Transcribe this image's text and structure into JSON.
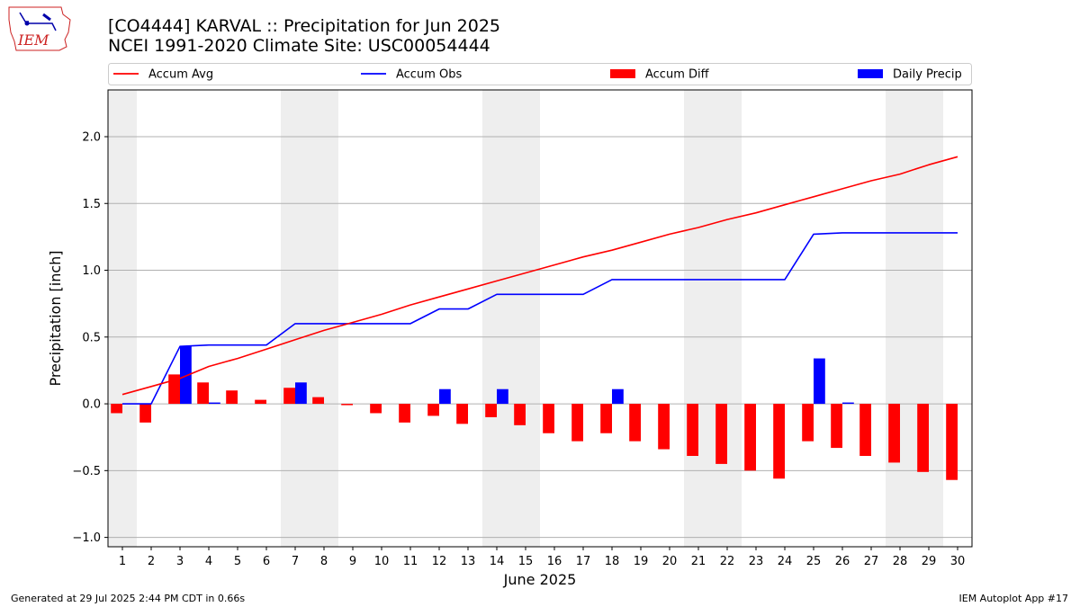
{
  "header": {
    "title_line1": "[CO4444] KARVAL :: Precipitation for Jun 2025",
    "title_line2": "NCEI 1991-2020 Climate Site: USC00054444",
    "logo_text": "IEM"
  },
  "footer": {
    "generated": "Generated at 29 Jul 2025 2:44 PM CDT in 0.66s",
    "app": "IEM Autoplot App #17"
  },
  "colors": {
    "accum_avg": "#ff0000",
    "accum_obs": "#0000ff",
    "accum_diff": "#ff0000",
    "daily_precip": "#0000ff",
    "weekend_shade": "#eeeeee"
  },
  "chart_data": {
    "type": "bar",
    "xlabel": "June 2025",
    "ylabel": "Precipitation [inch]",
    "ylim": [
      -1.07,
      2.35
    ],
    "yticks": [
      -1.0,
      -0.5,
      0.0,
      0.5,
      1.0,
      1.5,
      2.0
    ],
    "ytick_labels": [
      "−1.0",
      "−0.5",
      "0.0",
      "0.5",
      "1.0",
      "1.5",
      "2.0"
    ],
    "grid": "y",
    "legend": "top, above plot",
    "days": [
      1,
      2,
      3,
      4,
      5,
      6,
      7,
      8,
      9,
      10,
      11,
      12,
      13,
      14,
      15,
      16,
      17,
      18,
      19,
      20,
      21,
      22,
      23,
      24,
      25,
      26,
      27,
      28,
      29,
      30
    ],
    "weekend_days": [
      1,
      7,
      8,
      14,
      15,
      21,
      22,
      28,
      29
    ],
    "series": [
      {
        "name": "Accum Avg",
        "kind": "line",
        "values": [
          0.07,
          0.13,
          0.19,
          0.28,
          0.34,
          0.41,
          0.48,
          0.55,
          0.61,
          0.67,
          0.74,
          0.8,
          0.86,
          0.92,
          0.98,
          1.04,
          1.1,
          1.15,
          1.21,
          1.27,
          1.32,
          1.38,
          1.43,
          1.49,
          1.55,
          1.61,
          1.67,
          1.72,
          1.79,
          1.85
        ]
      },
      {
        "name": "Accum Obs",
        "kind": "line",
        "values": [
          0.0,
          0.0,
          0.43,
          0.44,
          0.44,
          0.44,
          0.6,
          0.6,
          0.6,
          0.6,
          0.6,
          0.71,
          0.71,
          0.82,
          0.82,
          0.82,
          0.82,
          0.93,
          0.93,
          0.93,
          0.93,
          0.93,
          0.93,
          0.93,
          1.27,
          1.28,
          1.28,
          1.28,
          1.28,
          1.28
        ]
      },
      {
        "name": "Accum Diff",
        "kind": "bar",
        "values": [
          -0.07,
          -0.14,
          0.22,
          0.16,
          0.1,
          0.03,
          0.12,
          0.05,
          -0.01,
          -0.07,
          -0.14,
          -0.09,
          -0.15,
          -0.1,
          -0.16,
          -0.22,
          -0.28,
          -0.22,
          -0.28,
          -0.34,
          -0.39,
          -0.45,
          -0.5,
          -0.56,
          -0.28,
          -0.33,
          -0.39,
          -0.44,
          -0.51,
          -0.57
        ]
      },
      {
        "name": "Daily Precip",
        "kind": "bar",
        "values": [
          0.0,
          0.0,
          0.43,
          0.01,
          0.0,
          0.0,
          0.16,
          0.0,
          0.0,
          0.0,
          0.0,
          0.11,
          0.0,
          0.11,
          0.0,
          0.0,
          0.0,
          0.11,
          0.0,
          0.0,
          0.0,
          0.0,
          0.0,
          0.0,
          0.34,
          0.01,
          0.0,
          0.0,
          0.0,
          0.0
        ]
      }
    ]
  }
}
